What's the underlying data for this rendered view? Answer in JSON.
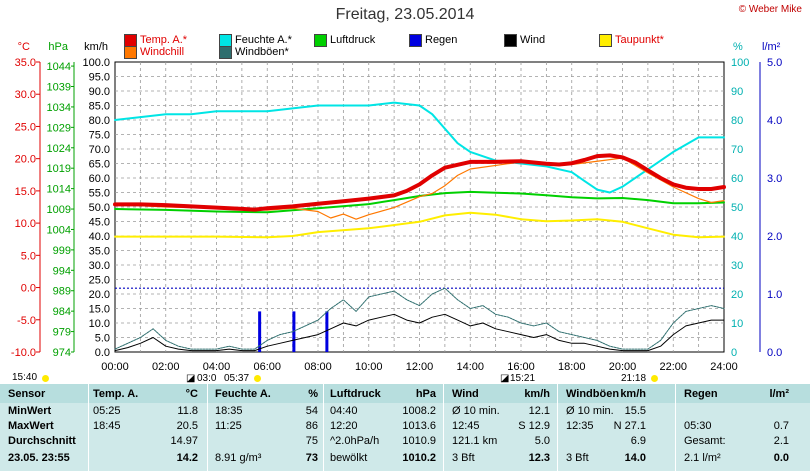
{
  "title": "Freitag, 23.05.2014",
  "copyright": "© Weber Mike",
  "axis_units": {
    "c": "°C",
    "hpa": "hPa",
    "kmh": "km/h",
    "pct": "%",
    "lm2": "l/m²"
  },
  "legend": [
    {
      "label": "Temp. A.*",
      "color": "#e00000"
    },
    {
      "label": "Feuchte A.*",
      "color": "#00e5e5"
    },
    {
      "label": "Luftdruck",
      "color": "#00d000"
    },
    {
      "label": "Regen",
      "color": "#0000e0"
    },
    {
      "label": "Wind",
      "color": "#000000"
    },
    {
      "label": "Taupunkt*",
      "color": "#ffee00"
    },
    {
      "label": "Windchill",
      "color": "#ff7800"
    },
    {
      "label": "Windböen*",
      "color": "#2e6e6e"
    }
  ],
  "tick_labels": {
    "c": [
      "35.0",
      "30.0",
      "25.0",
      "20.0",
      "15.0",
      "10.0",
      "5.0",
      "0.0",
      "-5.0",
      "-10.0"
    ],
    "hpa": [
      "1044",
      "1039",
      "1034",
      "1029",
      "1024",
      "1019",
      "1014",
      "1009",
      "1004",
      "999",
      "994",
      "989",
      "984",
      "979",
      "974"
    ],
    "kmh": [
      "100.0",
      "95.0",
      "90.0",
      "85.0",
      "80.0",
      "75.0",
      "70.0",
      "65.0",
      "60.0",
      "55.0",
      "50.0",
      "45.0",
      "40.0",
      "35.0",
      "30.0",
      "25.0",
      "20.0",
      "15.0",
      "10.0",
      "5.0",
      "0.0"
    ],
    "pct": [
      "100",
      "90",
      "80",
      "70",
      "60",
      "50",
      "40",
      "30",
      "20",
      "10",
      "0"
    ],
    "lm2": [
      "5.0",
      "4.0",
      "3.0",
      "2.0",
      "1.0",
      "0.0"
    ],
    "x": [
      "00:00",
      "02:00",
      "04:00",
      "06:00",
      "08:00",
      "10:00",
      "12:00",
      "14:00",
      "16:00",
      "18:00",
      "20:00",
      "22:00",
      "24:00"
    ]
  },
  "sun_marks": {
    "sunrise": "05:37",
    "sunset": "21:18",
    "daylight": "15:40",
    "moonrise": "03:0",
    "moonset": "15:21"
  },
  "chart_data": {
    "type": "line",
    "title": "Freitag, 23.05.2014",
    "x_unit": "hour",
    "xlim": [
      0,
      24
    ],
    "ylim_kmh": [
      0,
      100
    ],
    "ylim_temp": [
      -10,
      35
    ],
    "ylim_hpa": [
      974,
      1045
    ],
    "ylim_pct": [
      0,
      100
    ],
    "ylim_rain": [
      0,
      5
    ],
    "series": [
      {
        "name": "Temp. A.*",
        "unit": "°C",
        "color": "#e00000",
        "x": [
          0,
          1,
          2,
          3,
          4,
          5,
          5.5,
          6,
          7,
          8,
          9,
          10,
          11,
          11.5,
          12,
          12.5,
          13,
          14,
          15,
          16,
          16.5,
          17,
          17.5,
          18,
          18.5,
          19,
          19.5,
          20,
          20.5,
          21,
          21.5,
          22,
          22.5,
          23,
          23.5,
          24
        ],
        "y": [
          12.9,
          12.9,
          12.8,
          12.6,
          12.4,
          12.2,
          12.1,
          12.3,
          12.6,
          13.0,
          13.4,
          13.8,
          14.3,
          15.0,
          16.0,
          17.4,
          18.6,
          19.5,
          19.5,
          19.6,
          19.4,
          19.2,
          19.1,
          19.3,
          19.8,
          20.4,
          20.5,
          20.2,
          19.4,
          18.2,
          17.0,
          16.0,
          15.5,
          15.3,
          15.3,
          15.6
        ]
      },
      {
        "name": "Feuchte A.*",
        "unit": "%",
        "color": "#00e5e5",
        "x": [
          0,
          1,
          2,
          3,
          4,
          5,
          6,
          7,
          8,
          9,
          10,
          11,
          12,
          12.5,
          13,
          13.5,
          14,
          15,
          16,
          17,
          18,
          18.5,
          19,
          19.5,
          20,
          21,
          22,
          23,
          24
        ],
        "y": [
          80,
          81,
          82,
          82,
          83,
          83,
          83,
          84,
          85,
          85,
          85,
          86,
          85,
          82,
          77,
          72,
          69,
          66,
          65,
          64,
          62,
          59,
          56,
          55,
          57,
          63,
          69,
          74,
          74
        ]
      },
      {
        "name": "Luftdruck",
        "unit": "hPa",
        "color": "#00d000",
        "x": [
          0,
          2,
          4,
          6,
          8,
          10,
          11,
          12,
          13,
          14,
          15,
          16,
          17,
          18,
          19,
          20,
          21,
          22,
          23,
          24
        ],
        "y": [
          1009,
          1008.8,
          1008.4,
          1008.2,
          1009.2,
          1010.2,
          1011.2,
          1012.2,
          1012.9,
          1013.2,
          1013.0,
          1012.8,
          1012.4,
          1011.9,
          1011.6,
          1011.7,
          1011.2,
          1010.4,
          1010.4,
          1010.6
        ]
      },
      {
        "name": "Taupunkt*",
        "unit": "°C",
        "color": "#ffee00",
        "x": [
          0,
          2,
          4,
          6,
          7,
          8,
          10,
          12,
          13,
          14,
          15,
          16,
          17,
          18,
          19,
          20,
          21,
          22,
          23,
          24
        ],
        "y": [
          7.9,
          7.9,
          7.9,
          7.8,
          8.0,
          8.6,
          9.2,
          10.2,
          11.2,
          11.6,
          11.3,
          10.6,
          10.3,
          10.4,
          10.6,
          10.2,
          9.2,
          8.2,
          7.8,
          7.9
        ]
      },
      {
        "name": "Windchill",
        "unit": "°C",
        "color": "#ff7800",
        "x": [
          0,
          2,
          4,
          6,
          7,
          8,
          8.5,
          9,
          9.5,
          10,
          11,
          12,
          12.5,
          13,
          13.5,
          14,
          16,
          18,
          20,
          21,
          22,
          23,
          23.5,
          24
        ],
        "y": [
          12.9,
          12.5,
          12.3,
          12.0,
          12.3,
          11.8,
          10.8,
          11.4,
          10.6,
          11.3,
          12.4,
          14.1,
          14.6,
          15.8,
          17.4,
          18.4,
          19.5,
          19.1,
          20.1,
          17.8,
          15.6,
          13.8,
          13.2,
          13.5
        ]
      },
      {
        "name": "Wind",
        "unit": "km/h",
        "color": "#000000",
        "x": [
          0,
          0.5,
          1,
          1.5,
          2,
          2.5,
          3,
          3.5,
          4,
          4.5,
          5,
          5.5,
          6,
          6.5,
          7,
          7.5,
          8,
          8.5,
          9,
          9.5,
          10,
          10.5,
          11,
          11.5,
          12,
          12.5,
          13,
          13.5,
          14,
          14.5,
          15,
          15.5,
          16,
          16.5,
          17,
          17.5,
          18,
          18.5,
          19,
          19.5,
          20,
          20.5,
          21,
          21.5,
          22,
          22.5,
          23,
          23.5,
          24
        ],
        "y": [
          0.5,
          1.5,
          3,
          5,
          2,
          1,
          0.5,
          0.5,
          0.5,
          1,
          0.5,
          0.5,
          2,
          3,
          4,
          5,
          6,
          8,
          10,
          9,
          11,
          12,
          13,
          11,
          10,
          12,
          13,
          11,
          9,
          10,
          8,
          7,
          6,
          5,
          6,
          4,
          3,
          3,
          2,
          1,
          0.5,
          0.5,
          0.5,
          2,
          6,
          9,
          10,
          11,
          11
        ]
      },
      {
        "name": "Windböen*",
        "unit": "km/h",
        "color": "#2e6e6e",
        "x": [
          0,
          0.5,
          1,
          1.5,
          2,
          2.5,
          3,
          3.5,
          4,
          4.5,
          5,
          5.5,
          6,
          6.5,
          7,
          7.5,
          8,
          8.5,
          9,
          9.5,
          10,
          10.5,
          11,
          11.5,
          12,
          12.5,
          13,
          13.5,
          14,
          14.5,
          15,
          15.5,
          16,
          16.5,
          17,
          17.5,
          18,
          18.5,
          19,
          19.5,
          20,
          20.5,
          21,
          21.5,
          22,
          22.5,
          23,
          23.5,
          24
        ],
        "y": [
          1,
          3,
          5,
          8,
          4,
          2,
          1,
          1,
          1,
          2,
          1,
          1,
          4,
          6,
          7,
          9,
          11,
          15,
          18,
          14,
          19,
          20,
          21,
          18,
          16,
          20,
          22,
          18,
          15,
          16,
          13,
          12,
          10,
          9,
          10,
          7,
          6,
          5,
          4,
          2,
          1,
          1,
          1,
          4,
          10,
          14,
          15,
          16,
          15
        ]
      }
    ],
    "rain": {
      "name": "Regen",
      "unit": "l/m²",
      "color": "#0000e0",
      "x": [
        5.7,
        7.05,
        8.35
      ],
      "y": [
        0.7,
        0.7,
        0.7
      ]
    },
    "dashed_line": {
      "color": "#0000c0",
      "value_rain": 1.1
    }
  },
  "table": {
    "headers": [
      "Sensor",
      "Temp. A.",
      "°C",
      "Feuchte A.",
      "%",
      "Luftdruck",
      "hPa",
      "Wind",
      "km/h",
      "Windböen",
      "km/h",
      "Regen",
      "l/m²"
    ],
    "rows": [
      [
        "MinWert",
        "05:25",
        "11.8",
        "18:35",
        "54",
        "04:40",
        "1008.2",
        "Ø 10 min.",
        "12.1",
        "Ø 10 min.",
        "15.5",
        "",
        ""
      ],
      [
        "MaxWert",
        "18:45",
        "20.5",
        "11:25",
        "86",
        "12:20",
        "1013.6",
        "12:45",
        "S 12.9",
        "12:35",
        "N 27.1",
        "05:30",
        "0.7"
      ],
      [
        "Durchschnitt",
        "",
        "14.97",
        "",
        "75",
        "^2.0hPa/h",
        "1010.9",
        "121.1 km",
        "5.0",
        "",
        "6.9",
        "Gesamt:",
        "2.1"
      ],
      [
        "23.05. 23:55",
        "",
        "14.2",
        "8.91 g/m³",
        "73",
        "bewölkt",
        "1010.2",
        "3 Bft",
        "12.3",
        "3 Bft",
        "14.0",
        "2.1 l/m²",
        "0.0"
      ]
    ]
  }
}
